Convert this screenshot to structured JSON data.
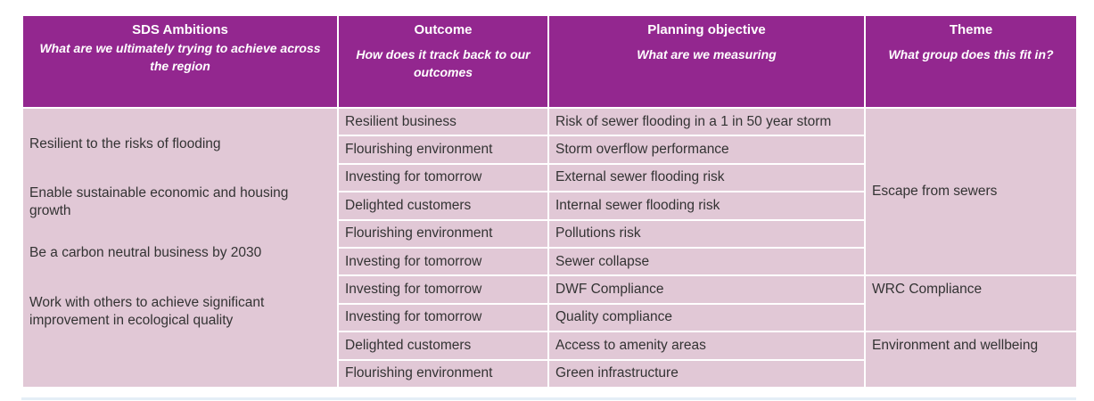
{
  "headers": [
    {
      "title": "SDS Ambitions",
      "subtitle": "What are we ultimately trying to achieve across the region"
    },
    {
      "title": "Outcome",
      "subtitle": "How does it track back to our outcomes"
    },
    {
      "title": "Planning objective",
      "subtitle": "What are we measuring"
    },
    {
      "title": "Theme",
      "subtitle": "What group does this fit in?"
    }
  ],
  "ambitions": [
    "Resilient to the risks of flooding",
    "Enable sustainable economic and housing growth",
    "Be a carbon neutral business by 2030",
    "Work with others to achieve significant improvement in ecological quality"
  ],
  "rows": [
    {
      "outcome": "Resilient business",
      "objective": "Risk of sewer flooding in a 1 in 50 year storm"
    },
    {
      "outcome": "Flourishing environment",
      "objective": "Storm overflow performance"
    },
    {
      "outcome": "Investing for tomorrow",
      "objective": "External sewer flooding risk"
    },
    {
      "outcome": "Delighted customers",
      "objective": "Internal sewer flooding risk"
    },
    {
      "outcome": "Flourishing environment",
      "objective": "Pollutions risk"
    },
    {
      "outcome": "Investing for tomorrow",
      "objective": "Sewer collapse"
    },
    {
      "outcome": "Investing for tomorrow",
      "objective": "DWF Compliance"
    },
    {
      "outcome": "Investing for tomorrow",
      "objective": "Quality compliance"
    },
    {
      "outcome": "Delighted customers",
      "objective": "Access to amenity areas"
    },
    {
      "outcome": "Flourishing environment",
      "objective": "Green infrastructure"
    }
  ],
  "themes": [
    "Escape from sewers",
    "WRC Compliance",
    "Environment and wellbeing"
  ],
  "colors": {
    "header": "#93278f",
    "cell": "#e1c8d6",
    "text": "#333333"
  }
}
